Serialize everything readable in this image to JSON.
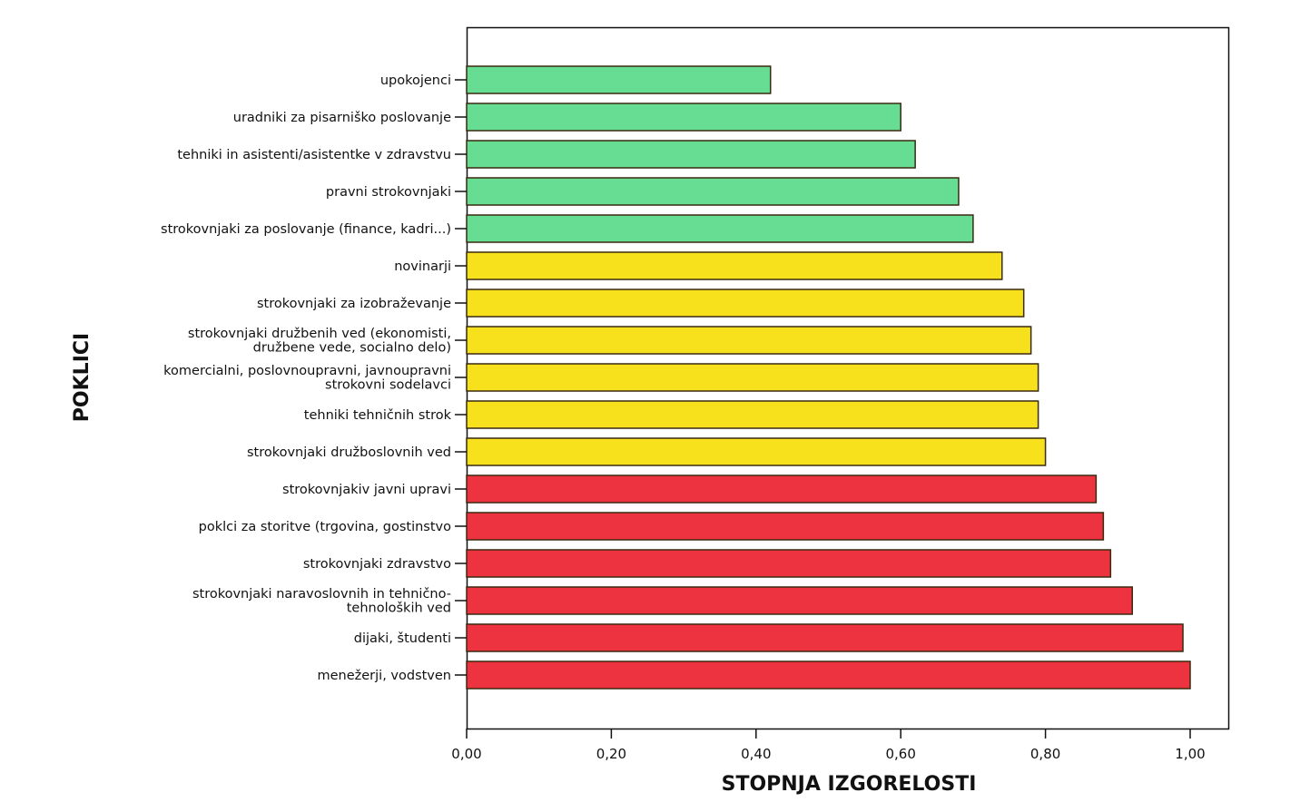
{
  "chart_data": {
    "type": "bar",
    "orientation": "horizontal",
    "xlabel": "STOPNJA IZGORELOSTI",
    "ylabel": "POKLICI",
    "xlim": [
      0,
      1.05
    ],
    "xticks": [
      "0,00",
      "0,20",
      "0,40",
      "0,60",
      "0,80",
      "1,00"
    ],
    "xtick_values": [
      0,
      0.2,
      0.4,
      0.6,
      0.8,
      1.0
    ],
    "grid": false,
    "colors": {
      "green": "#66dd92",
      "yellow": "#f7e01c",
      "red": "#ee3340"
    },
    "bars": [
      {
        "label": [
          "upokojenci"
        ],
        "value": 0.42,
        "group": "green"
      },
      {
        "label": [
          "uradniki za pisarniško poslovanje"
        ],
        "value": 0.6,
        "group": "green"
      },
      {
        "label": [
          "tehniki in asistenti/asistentke v zdravstvu"
        ],
        "value": 0.62,
        "group": "green"
      },
      {
        "label": [
          "pravni strokovnjaki"
        ],
        "value": 0.68,
        "group": "green"
      },
      {
        "label": [
          "strokovnjaki za poslovanje (finance, kadri...)"
        ],
        "value": 0.7,
        "group": "green"
      },
      {
        "label": [
          "novinarji"
        ],
        "value": 0.74,
        "group": "yellow"
      },
      {
        "label": [
          "strokovnjaki za izobraževanje"
        ],
        "value": 0.77,
        "group": "yellow"
      },
      {
        "label": [
          "strokovnjaki družbenih ved (ekonomisti,",
          "družbene vede, socialno delo)"
        ],
        "value": 0.78,
        "group": "yellow"
      },
      {
        "label": [
          "komercialni, poslovnoupravni, javnoupravni",
          "strokovni sodelavci"
        ],
        "value": 0.79,
        "group": "yellow"
      },
      {
        "label": [
          "tehniki tehničnih strok"
        ],
        "value": 0.79,
        "group": "yellow"
      },
      {
        "label": [
          "strokovnjaki družboslovnih ved"
        ],
        "value": 0.8,
        "group": "yellow"
      },
      {
        "label": [
          "strokovnjakiv javni upravi"
        ],
        "value": 0.87,
        "group": "red"
      },
      {
        "label": [
          "poklci za storitve (trgovina, gostinstvo"
        ],
        "value": 0.88,
        "group": "red"
      },
      {
        "label": [
          "strokovnjaki zdravstvo"
        ],
        "value": 0.89,
        "group": "red"
      },
      {
        "label": [
          "strokovnjaki naravoslovnih in tehnično-",
          "tehnoloških ved"
        ],
        "value": 0.92,
        "group": "red"
      },
      {
        "label": [
          "dijaki, študenti"
        ],
        "value": 0.99,
        "group": "red"
      },
      {
        "label": [
          "menežerji, vodstven"
        ],
        "value": 1.0,
        "group": "red"
      }
    ]
  }
}
